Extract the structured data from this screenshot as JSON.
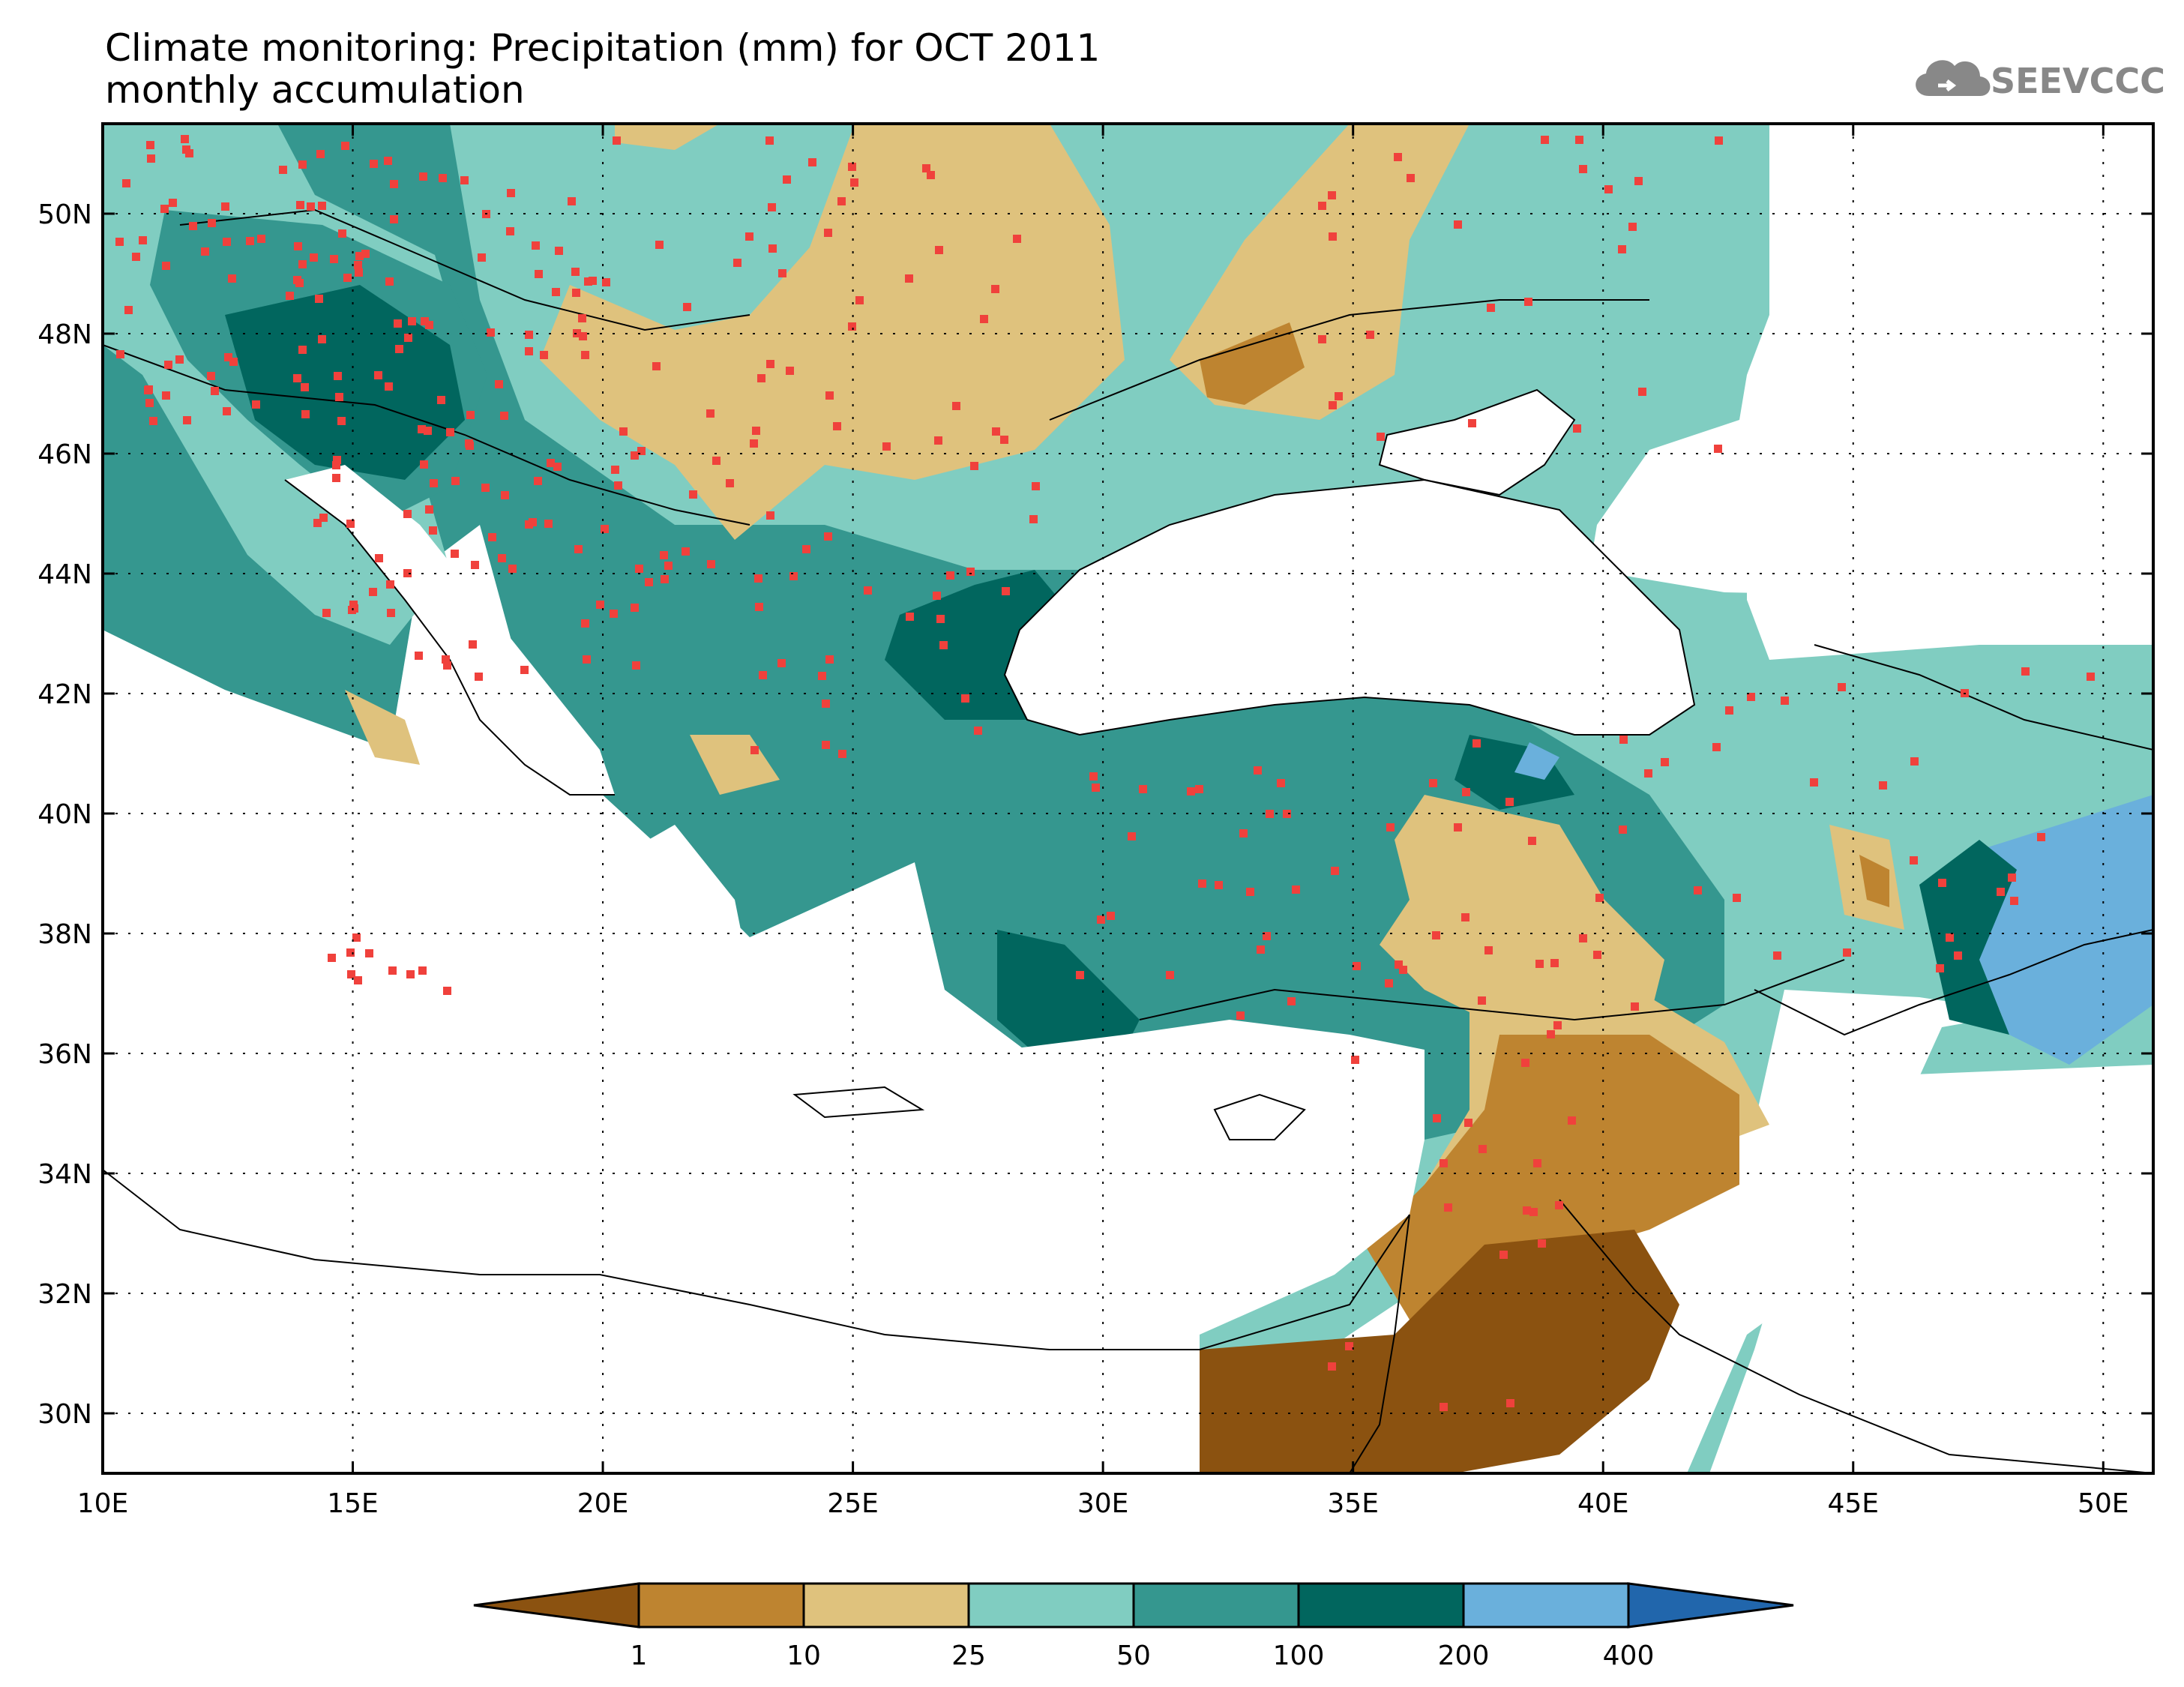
{
  "header": {
    "title_line1": "Climate monitoring: Precipitation (mm) for OCT 2011",
    "title_line2": "monthly accumulation",
    "logo_text": "SEEVCCC"
  },
  "map": {
    "lon_range": [
      10,
      51
    ],
    "lat_range": [
      29,
      51.5
    ],
    "lon_ticks": [
      {
        "value": 10,
        "label": "10E"
      },
      {
        "value": 15,
        "label": "15E"
      },
      {
        "value": 20,
        "label": "20E"
      },
      {
        "value": 25,
        "label": "25E"
      },
      {
        "value": 30,
        "label": "30E"
      },
      {
        "value": 35,
        "label": "35E"
      },
      {
        "value": 40,
        "label": "40E"
      },
      {
        "value": 45,
        "label": "45E"
      },
      {
        "value": 50,
        "label": "50E"
      }
    ],
    "lat_ticks": [
      {
        "value": 30,
        "label": "30N"
      },
      {
        "value": 32,
        "label": "32N"
      },
      {
        "value": 34,
        "label": "34N"
      },
      {
        "value": 36,
        "label": "36N"
      },
      {
        "value": 38,
        "label": "38N"
      },
      {
        "value": 40,
        "label": "40N"
      },
      {
        "value": 42,
        "label": "42N"
      },
      {
        "value": 44,
        "label": "44N"
      },
      {
        "value": 46,
        "label": "46N"
      },
      {
        "value": 48,
        "label": "48N"
      },
      {
        "value": 50,
        "label": "50N"
      }
    ],
    "grid": true,
    "station_color": "#f0413c"
  },
  "colorbar": {
    "levels": [
      "1",
      "10",
      "25",
      "50",
      "100",
      "200",
      "400"
    ],
    "colors": [
      "#8b5210",
      "#be8430",
      "#dfc27d",
      "#80cdc1",
      "#35978f",
      "#01665e",
      "#6ab0dc",
      "#2166ac"
    ]
  }
}
